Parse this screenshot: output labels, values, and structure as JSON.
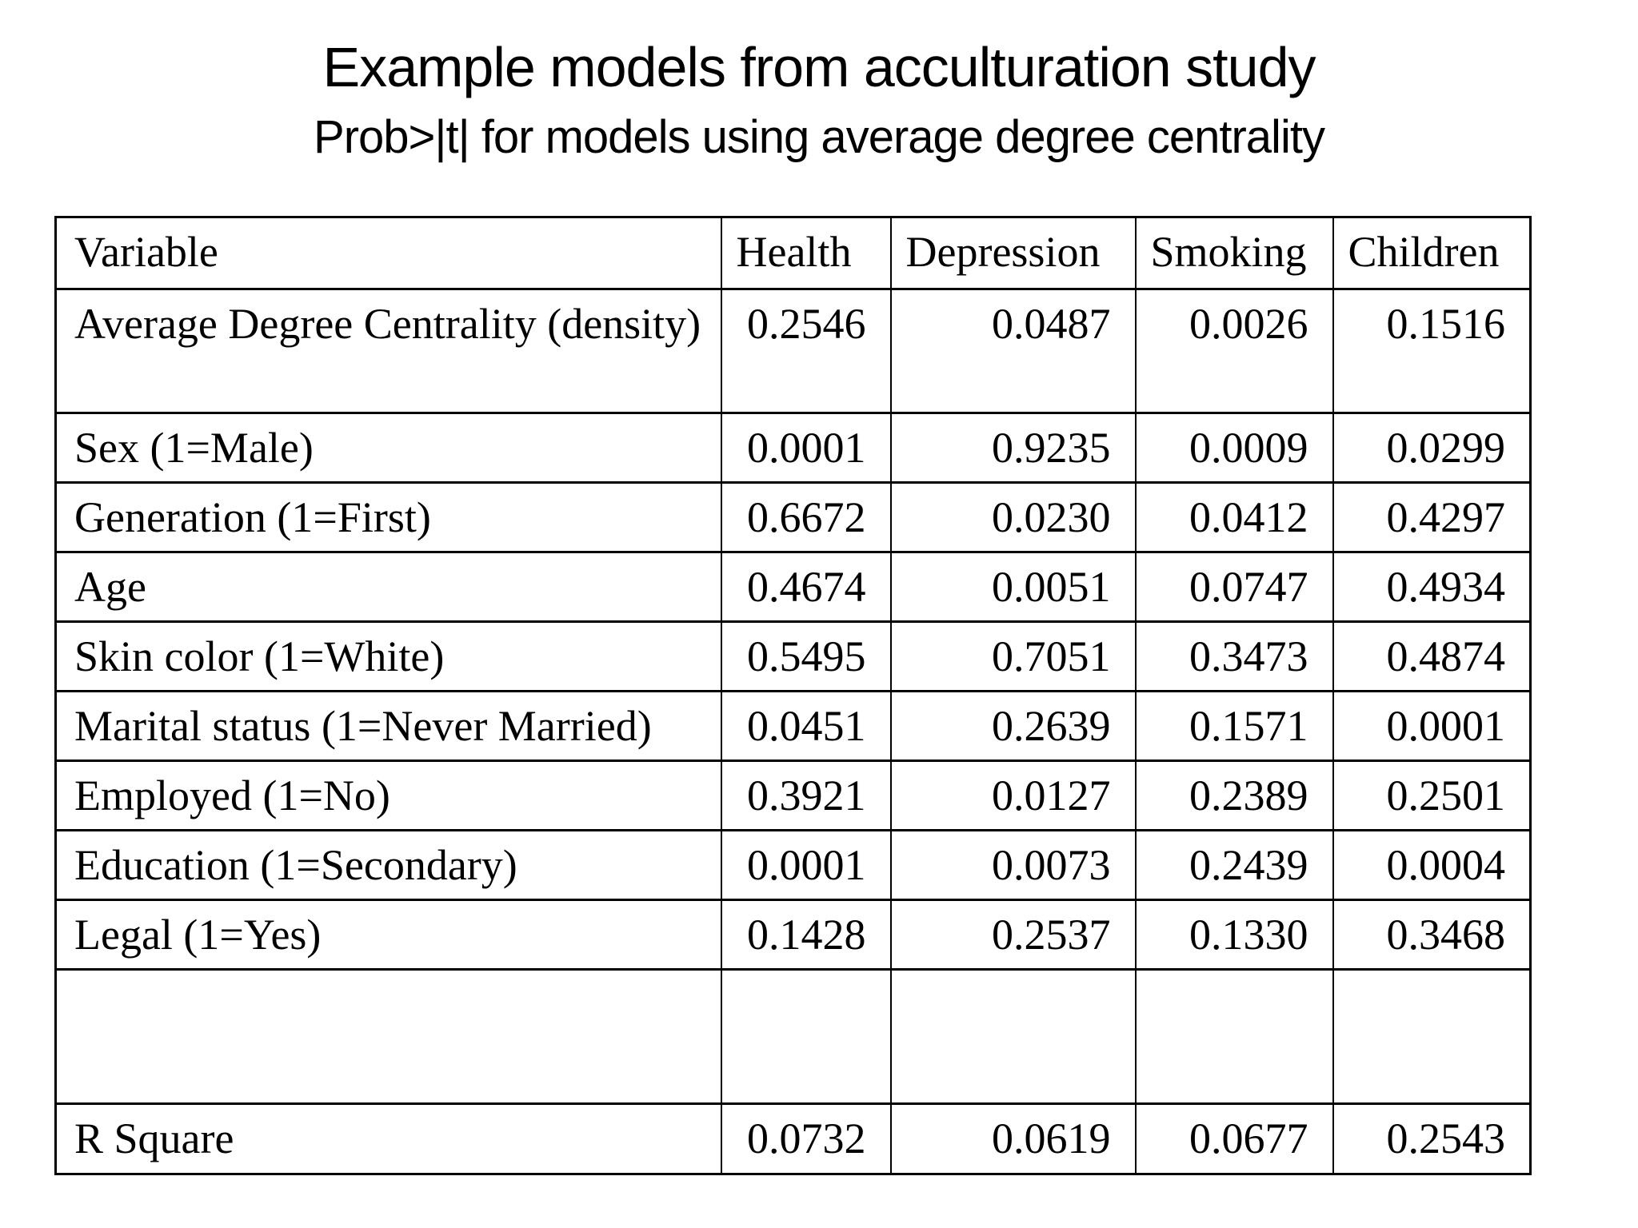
{
  "page": {
    "title": "Example models from acculturation study",
    "subtitle": "Prob>|t| for models using average degree centrality"
  },
  "colors": {
    "text": "#000000",
    "background": "#ffffff",
    "table_border": "#000000"
  },
  "table": {
    "headers": [
      "Variable",
      "Health",
      "Depression",
      "Smoking",
      "Children"
    ],
    "rows": [
      {
        "label": "Average Degree Centrality (density)",
        "values": [
          {
            "text": "0.2546",
            "bold": false
          },
          {
            "text": "0.0487",
            "bold": true
          },
          {
            "text": "0.0026",
            "bold": true
          },
          {
            "text": "0.1516",
            "bold": false
          }
        ]
      },
      {
        "label": "Sex (1=Male)",
        "values": [
          {
            "text": "0.0001",
            "bold": true
          },
          {
            "text": "0.9235",
            "bold": false
          },
          {
            "text": "0.0009",
            "bold": true
          },
          {
            "text": "0.0299",
            "bold": true
          }
        ]
      },
      {
        "label": "Generation (1=First)",
        "values": [
          {
            "text": "0.6672",
            "bold": false
          },
          {
            "text": "0.0230",
            "bold": true
          },
          {
            "text": "0.0412",
            "bold": true
          },
          {
            "text": "0.4297",
            "bold": false
          }
        ]
      },
      {
        "label": "Age",
        "values": [
          {
            "text": "0.4674",
            "bold": false
          },
          {
            "text": "0.0051",
            "bold": true
          },
          {
            "text": "0.0747",
            "bold": false
          },
          {
            "text": "0.4934",
            "bold": false
          }
        ]
      },
      {
        "label": "Skin color (1=White)",
        "values": [
          {
            "text": "0.5495",
            "bold": false
          },
          {
            "text": "0.7051",
            "bold": false
          },
          {
            "text": "0.3473",
            "bold": false
          },
          {
            "text": "0.4874",
            "bold": false
          }
        ]
      },
      {
        "label": "Marital status (1=Never Married)",
        "values": [
          {
            "text": "0.0451",
            "bold": true
          },
          {
            "text": "0.2639",
            "bold": false
          },
          {
            "text": "0.1571",
            "bold": false
          },
          {
            "text": "0.0001",
            "bold": true
          }
        ]
      },
      {
        "label": "Employed (1=No)",
        "values": [
          {
            "text": "0.3921",
            "bold": false
          },
          {
            "text": "0.0127",
            "bold": true
          },
          {
            "text": "0.2389",
            "bold": false
          },
          {
            "text": "0.2501",
            "bold": false
          }
        ]
      },
      {
        "label": "Education (1=Secondary)",
        "values": [
          {
            "text": "0.0001",
            "bold": true
          },
          {
            "text": "0.0073",
            "bold": true
          },
          {
            "text": "0.2439",
            "bold": false
          },
          {
            "text": "0.0004",
            "bold": true
          }
        ]
      },
      {
        "label": "Legal (1=Yes)",
        "values": [
          {
            "text": "0.1428",
            "bold": false
          },
          {
            "text": "0.2537",
            "bold": false
          },
          {
            "text": "0.1330",
            "bold": false
          },
          {
            "text": "0.3468",
            "bold": false
          }
        ]
      },
      {
        "label": "",
        "values": [
          {
            "text": "",
            "bold": false
          },
          {
            "text": "",
            "bold": false
          },
          {
            "text": "",
            "bold": false
          },
          {
            "text": "",
            "bold": false
          }
        ]
      },
      {
        "label": "R Square",
        "values": [
          {
            "text": "0.0732",
            "bold": false
          },
          {
            "text": "0.0619",
            "bold": false
          },
          {
            "text": "0.0677",
            "bold": false
          },
          {
            "text": "0.2543",
            "bold": false
          }
        ]
      }
    ]
  }
}
